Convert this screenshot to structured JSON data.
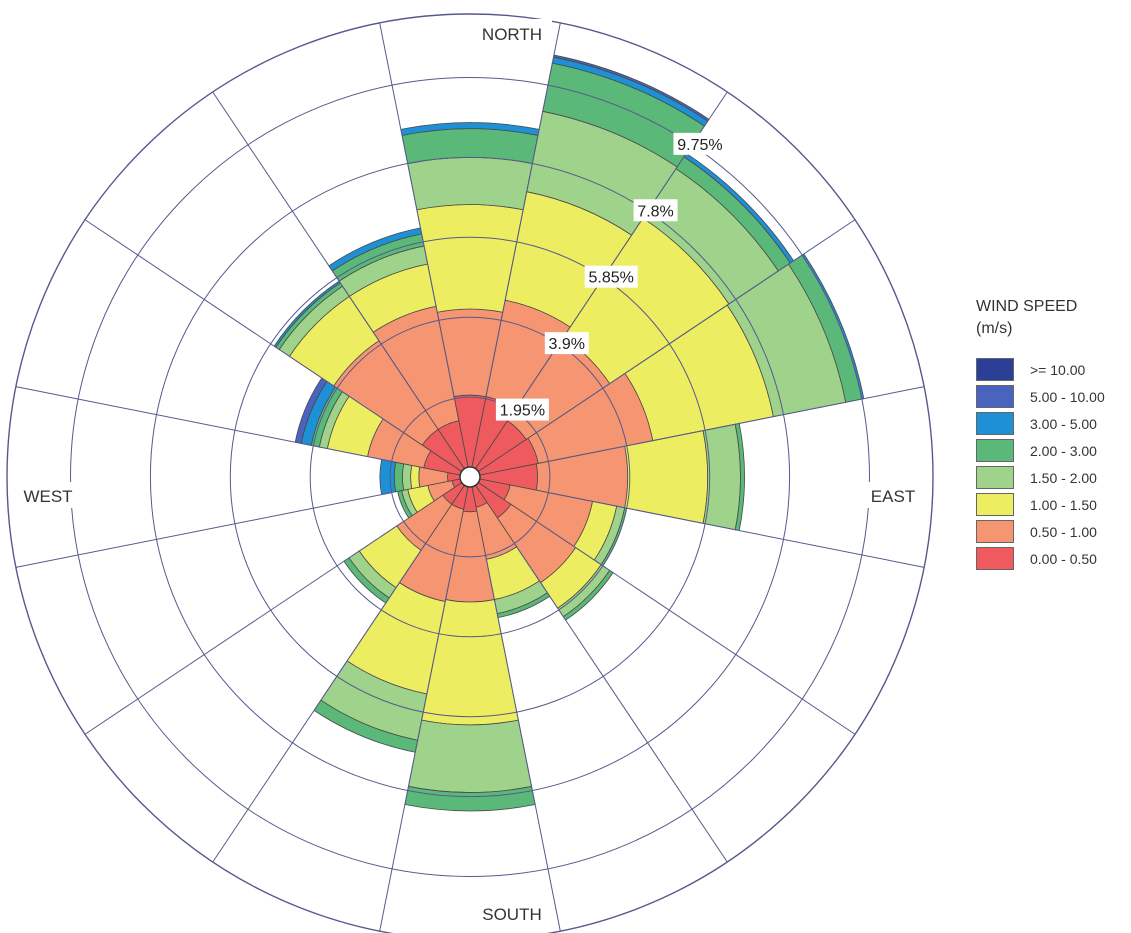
{
  "chart_data": {
    "type": "polar-stacked-bar",
    "title": "",
    "directions": [
      "N",
      "NNE",
      "NE",
      "ENE",
      "E",
      "ESE",
      "SE",
      "SSE",
      "S",
      "SSW",
      "SW",
      "WSW",
      "W",
      "WNW",
      "NW",
      "NNW"
    ],
    "direction_labels": {
      "north": "NORTH",
      "east": "EAST",
      "south": "SOUTH",
      "west": "WEST"
    },
    "radial_unit": "%",
    "radial_max": 11.3,
    "rings": [
      {
        "value": 1.95,
        "label": "1.95%"
      },
      {
        "value": 3.9,
        "label": "3.9%"
      },
      {
        "value": 5.85,
        "label": "5.85%"
      },
      {
        "value": 7.8,
        "label": "7.8%"
      },
      {
        "value": 9.75,
        "label": "9.75%"
      },
      {
        "value": 11.3,
        "label": ""
      }
    ],
    "legend": {
      "title_line1": "WIND SPEED",
      "title_line2": "(m/s)",
      "placement": "right"
    },
    "bins": [
      {
        "label": ">= 10.00",
        "color": "#2b3f96"
      },
      {
        "label": "5.00 - 10.00",
        "color": "#4a64be"
      },
      {
        "label": "3.00 - 5.00",
        "color": "#1e90d6"
      },
      {
        "label": "2.00 - 3.00",
        "color": "#5ab878"
      },
      {
        "label": "1.50 - 2.00",
        "color": "#9fd28a"
      },
      {
        "label": "1.00 - 1.50",
        "color": "#eded62"
      },
      {
        "label": "0.50 - 1.00",
        "color": "#f59571"
      },
      {
        "label": "0.00 - 0.50",
        "color": "#ee5a5e"
      }
    ],
    "series_cumulative_note": "values per direction are cumulative frequencies (%) from calm bin upward, ordered 0.00-0.50 first",
    "series": [
      {
        "dir": "N",
        "cum": [
          2.0,
          4.1,
          6.65,
          7.8,
          8.5,
          8.65,
          8.65,
          8.65
        ]
      },
      {
        "dir": "NNE",
        "cum": [
          2.0,
          4.4,
          7.1,
          9.1,
          10.3,
          10.45,
          10.5,
          10.5
        ]
      },
      {
        "dir": "NE",
        "cum": [
          1.65,
          4.1,
          7.6,
          9.05,
          9.4,
          9.5,
          9.5,
          9.5
        ]
      },
      {
        "dir": "ENE",
        "cum": [
          1.7,
          4.55,
          7.55,
          9.35,
          9.75,
          9.8,
          9.8,
          9.8
        ]
      },
      {
        "dir": "E",
        "cum": [
          1.65,
          3.85,
          5.8,
          6.6,
          6.7,
          6.7,
          6.7,
          6.7
        ]
      },
      {
        "dir": "ESE",
        "cum": [
          1.0,
          3.05,
          3.65,
          3.85,
          3.9,
          3.9,
          3.9,
          3.9
        ]
      },
      {
        "dir": "SE",
        "cum": [
          1.2,
          3.1,
          3.85,
          4.1,
          4.2,
          4.2,
          4.2,
          4.2
        ]
      },
      {
        "dir": "SSE",
        "cum": [
          0.75,
          2.05,
          3.05,
          3.4,
          3.5,
          3.5,
          3.5,
          3.5
        ]
      },
      {
        "dir": "S",
        "cum": [
          0.85,
          3.05,
          6.05,
          7.7,
          8.15,
          8.15,
          8.15,
          8.15
        ]
      },
      {
        "dir": "SSW",
        "cum": [
          0.8,
          3.1,
          5.4,
          6.55,
          6.85,
          6.85,
          6.85,
          6.85
        ]
      },
      {
        "dir": "SW",
        "cum": [
          0.8,
          2.15,
          3.25,
          3.55,
          3.7,
          3.7,
          3.7,
          3.7
        ]
      },
      {
        "dir": "WSW",
        "cum": [
          0.45,
          1.05,
          1.55,
          1.7,
          1.8,
          1.8,
          1.8,
          1.8
        ]
      },
      {
        "dir": "W",
        "cum": [
          0.55,
          1.25,
          1.45,
          1.65,
          1.85,
          2.2,
          2.2,
          2.2
        ]
      },
      {
        "dir": "WNW",
        "cum": [
          1.15,
          2.55,
          3.55,
          3.75,
          3.95,
          4.2,
          4.35,
          4.35
        ]
      },
      {
        "dir": "NW",
        "cum": [
          1.4,
          4.0,
          5.3,
          5.6,
          5.7,
          5.75,
          5.75,
          5.75
        ]
      },
      {
        "dir": "NNW",
        "cum": [
          1.4,
          4.25,
          5.3,
          5.75,
          6.05,
          6.2,
          6.2,
          6.2
        ]
      }
    ]
  }
}
